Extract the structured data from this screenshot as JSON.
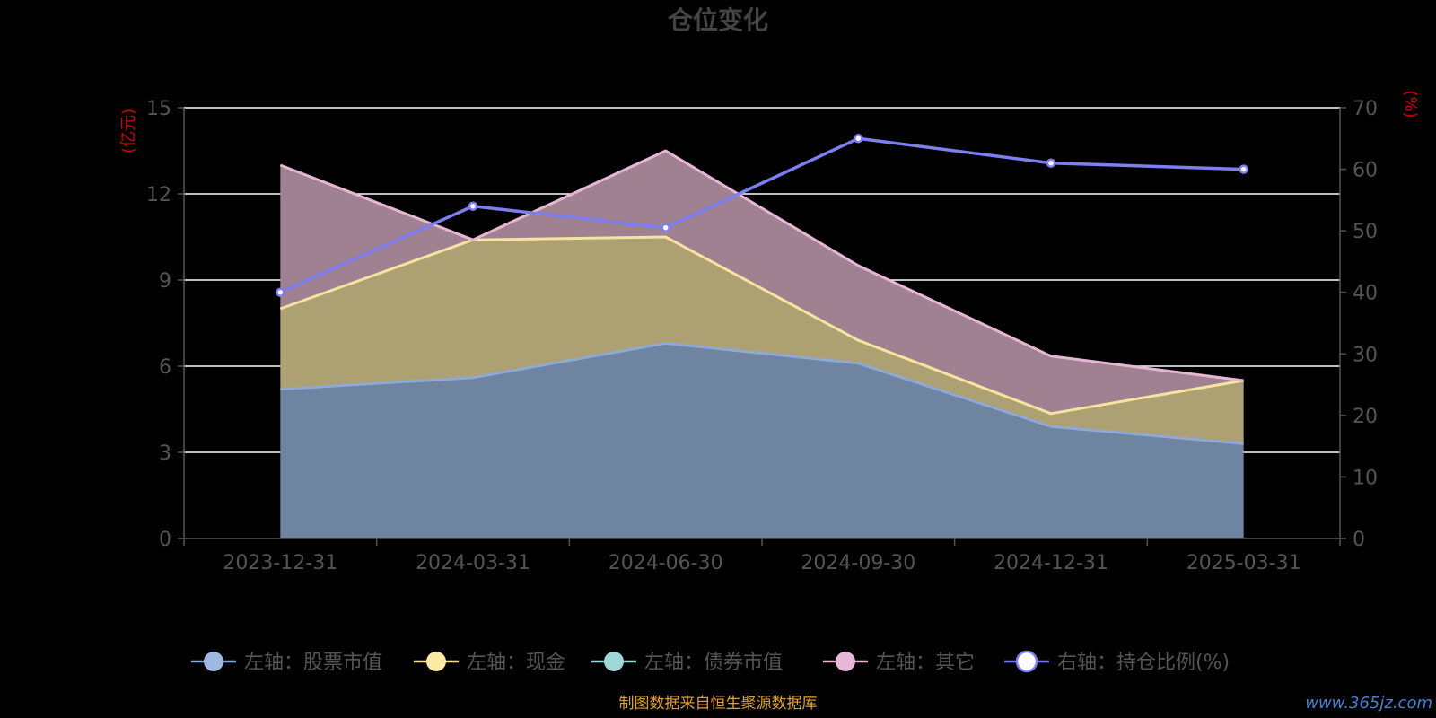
{
  "chart_data": {
    "type": "area",
    "title": "仓位变化",
    "categories": [
      "2023-12-31",
      "2024-03-31",
      "2024-06-30",
      "2024-09-30",
      "2024-12-31",
      "2025-03-31"
    ],
    "left_axis": {
      "unit_label": "(亿元)",
      "ylim": [
        0,
        15
      ],
      "ticks": [
        0,
        3,
        6,
        9,
        12,
        15
      ]
    },
    "right_axis": {
      "unit_label": "(%)",
      "ylim": [
        0,
        70
      ],
      "ticks": [
        0,
        10,
        20,
        30,
        40,
        50,
        60,
        70
      ]
    },
    "stacked": true,
    "grid": true,
    "series": [
      {
        "name": "左轴：股票市值",
        "axis": "left",
        "type": "area",
        "values": [
          5.2,
          5.6,
          6.8,
          6.1,
          3.9,
          3.3
        ],
        "line_color": "#8fa9d6",
        "fill_color": "#6e84a1",
        "legend_color": "#9eb8e0"
      },
      {
        "name": "左轴：现金",
        "axis": "left",
        "type": "area",
        "values": [
          2.8,
          4.8,
          3.7,
          0.8,
          0.45,
          2.2
        ],
        "line_color": "#f5e3a0",
        "fill_color": "#ada072",
        "legend_color": "#fbe9a6"
      },
      {
        "name": "左轴：债券市值",
        "axis": "left",
        "type": "area",
        "values": [
          0,
          0,
          0,
          0,
          0,
          0
        ],
        "line_color": "#9ed6d3",
        "fill_color": "#7fb3b0",
        "legend_color": "#9fd8d6"
      },
      {
        "name": "左轴：其它",
        "axis": "left",
        "type": "area",
        "values": [
          5.0,
          0.0,
          3.0,
          2.6,
          2.0,
          0.0
        ],
        "line_color": "#e6b6d4",
        "fill_color": "#a08192",
        "legend_color": "#e8b8d8"
      },
      {
        "name": "右轴：持仓比例(%)",
        "axis": "right",
        "type": "line",
        "values": [
          40,
          54,
          50.5,
          65,
          61,
          60
        ],
        "line_color": "#7d7ef0",
        "fill_color": "#ffffff",
        "legend_color": "#ffffff"
      }
    ],
    "legend_position": "bottom"
  },
  "source_note": "制图数据来自恒生聚源数据库",
  "watermark": "www.365jz.com"
}
